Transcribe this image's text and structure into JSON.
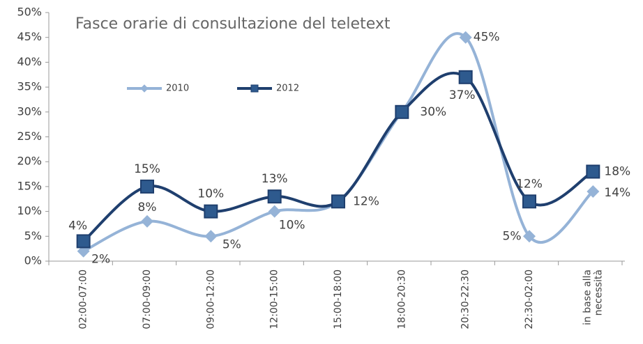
{
  "chart_data": {
    "type": "line",
    "title": "Fasce orarie di consultazione del teletext",
    "categories": [
      "02:00-07:00",
      "07:00-09:00",
      "09:00-12:00",
      "12:00-15:00",
      "15:00-18:00",
      "18:00-20:30",
      "20:30-22:30",
      "22:30-02:00",
      "in base alla necessità"
    ],
    "series": [
      {
        "name": "2010",
        "color": "#95b3d7",
        "marker": "diamond",
        "values": [
          2,
          8,
          5,
          10,
          12,
          30,
          45,
          5,
          14
        ],
        "value_labels": [
          "2%",
          "8%",
          "5%",
          "10%",
          null,
          null,
          "45%",
          "5%",
          "14%"
        ]
      },
      {
        "name": "2012",
        "color": "#1f3f6e",
        "marker": "square",
        "values": [
          4,
          15,
          10,
          13,
          12,
          30,
          37,
          12,
          18
        ],
        "value_labels": [
          "4%",
          "15%",
          "10%",
          "13%",
          "12%",
          "30%",
          "37%",
          "12%",
          "18%"
        ]
      }
    ],
    "ylim": [
      0,
      50
    ],
    "yticks": [
      {
        "value": 0,
        "label": "0%"
      },
      {
        "value": 5,
        "label": "5%"
      },
      {
        "value": 10,
        "label": "10%"
      },
      {
        "value": 15,
        "label": "15%"
      },
      {
        "value": 20,
        "label": "20%"
      },
      {
        "value": 25,
        "label": "25%"
      },
      {
        "value": 30,
        "label": "30%"
      },
      {
        "value": 35,
        "label": "35%"
      },
      {
        "value": 40,
        "label": "40%"
      },
      {
        "value": 45,
        "label": "45%"
      },
      {
        "value": 50,
        "label": "50%"
      }
    ],
    "smooth": true
  }
}
